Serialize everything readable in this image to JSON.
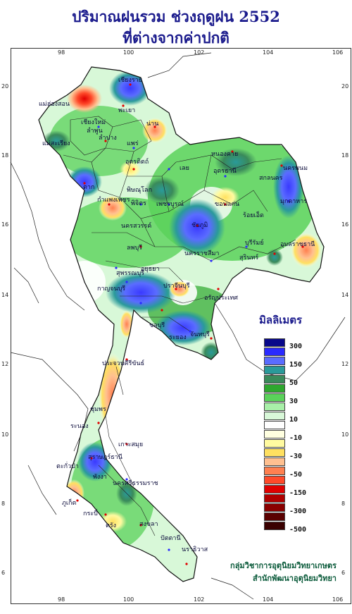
{
  "title_line1": "ปริมาณฝนรวม ช่วงฤดูฝน 2552",
  "title_line2": "ที่ต่างจากค่าปกติ",
  "legend_title": "มิลลิเมตร",
  "legend": [
    {
      "value": "300",
      "color": "#08088a"
    },
    {
      "value": "",
      "color": "#2a2aff"
    },
    {
      "value": "150",
      "color": "#5a6cff"
    },
    {
      "value": "",
      "color": "#2a9a9a"
    },
    {
      "value": "50",
      "color": "#3a8a5a"
    },
    {
      "value": "",
      "color": "#2ea82e"
    },
    {
      "value": "30",
      "color": "#5ad25a"
    },
    {
      "value": "",
      "color": "#a8f0a8"
    },
    {
      "value": "10",
      "color": "#d8f8d8"
    },
    {
      "value": "",
      "color": "#ffffff"
    },
    {
      "value": "-10",
      "color": "#ffffe0"
    },
    {
      "value": "",
      "color": "#fffaa0"
    },
    {
      "value": "-30",
      "color": "#ffe060"
    },
    {
      "value": "",
      "color": "#ffc090"
    },
    {
      "value": "-50",
      "color": "#ff8050"
    },
    {
      "value": "",
      "color": "#ff4a2a"
    },
    {
      "value": "-150",
      "color": "#e00000"
    },
    {
      "value": "",
      "color": "#b00000"
    },
    {
      "value": "-300",
      "color": "#8a0000"
    },
    {
      "value": "",
      "color": "#5a0000"
    },
    {
      "value": "-500",
      "color": "#3a0000"
    }
  ],
  "credit_line1": "กลุ่มวิชาการอุตุนิยมวิทยาเกษตร",
  "credit_line2": "สำนักพัฒนาอุตุนิยมวิทยา",
  "lon_ticks": [
    "98",
    "100",
    "102",
    "104",
    "106"
  ],
  "lat_ticks": [
    "20",
    "18",
    "16",
    "14",
    "12",
    "10",
    "8",
    "6"
  ],
  "places": [
    {
      "name": "เชียงราย"
    },
    {
      "name": "แม่ฮ่องสอน"
    },
    {
      "name": "พะเยา"
    },
    {
      "name": "เชียงใหม่"
    },
    {
      "name": "ลำพูน"
    },
    {
      "name": "น่าน"
    },
    {
      "name": "แม่สะเรียง"
    },
    {
      "name": "ลำปาง"
    },
    {
      "name": "แพร่"
    },
    {
      "name": "อุตรดิตถ์"
    },
    {
      "name": "ตาก"
    },
    {
      "name": "พิษณุโลก"
    },
    {
      "name": "เลย"
    },
    {
      "name": "หนองคาย"
    },
    {
      "name": "อุดรธานี"
    },
    {
      "name": "นครพนม"
    },
    {
      "name": "สกลนคร"
    },
    {
      "name": "มุกดาหาร"
    },
    {
      "name": "ขอนแก่น"
    },
    {
      "name": "กำแพงเพชร"
    },
    {
      "name": "พิจิตร"
    },
    {
      "name": "เพชรบูรณ์"
    },
    {
      "name": "นครสวรรค์"
    },
    {
      "name": "ชัยภูมิ"
    },
    {
      "name": "ร้อยเอ็ด"
    },
    {
      "name": "อุบลราชธานี"
    },
    {
      "name": "ลพบุรี"
    },
    {
      "name": "นครราชสีมา"
    },
    {
      "name": "บุรีรัมย์"
    },
    {
      "name": "สุรินทร์"
    },
    {
      "name": "สุพรรณบุรี"
    },
    {
      "name": "อยุธยา"
    },
    {
      "name": "กาญจนบุรี"
    },
    {
      "name": "ปราจีนบุรี"
    },
    {
      "name": "อรัญประเทศ"
    },
    {
      "name": "ชลบุรี"
    },
    {
      "name": "ระยอง"
    },
    {
      "name": "จันทบุรี"
    },
    {
      "name": "ประจวบคีรีขันธ์"
    },
    {
      "name": "ชุมพร"
    },
    {
      "name": "ระนอง"
    },
    {
      "name": "เกาะสมุย"
    },
    {
      "name": "สุราษฎร์ธานี"
    },
    {
      "name": "ตะกั่วป่า"
    },
    {
      "name": "พังงา"
    },
    {
      "name": "นครศรีธรรมราช"
    },
    {
      "name": "ภูเก็ต"
    },
    {
      "name": "กระบี่"
    },
    {
      "name": "ตรัง"
    },
    {
      "name": "สงขลา"
    },
    {
      "name": "ปัตตานี"
    },
    {
      "name": "นราธิวาส"
    }
  ]
}
